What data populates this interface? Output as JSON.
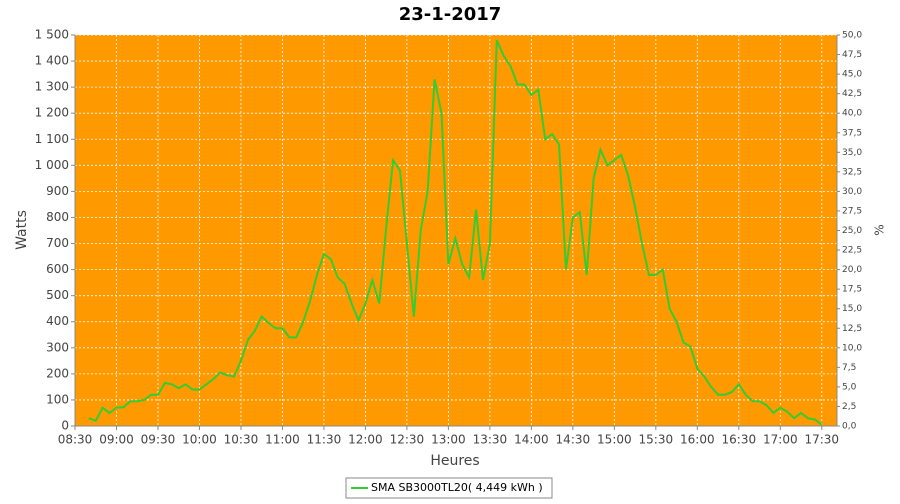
{
  "chart_data": {
    "type": "line",
    "title": "23-1-2017",
    "xlabel": "Heures",
    "ylabel": "Watts",
    "y2label": "%",
    "x": [
      "08:40",
      "08:45",
      "08:50",
      "08:55",
      "09:00",
      "09:05",
      "09:10",
      "09:15",
      "09:20",
      "09:25",
      "09:30",
      "09:35",
      "09:40",
      "09:45",
      "09:50",
      "09:55",
      "10:00",
      "10:05",
      "10:10",
      "10:15",
      "10:20",
      "10:25",
      "10:30",
      "10:35",
      "10:40",
      "10:45",
      "10:50",
      "10:55",
      "11:00",
      "11:05",
      "11:10",
      "11:15",
      "11:20",
      "11:25",
      "11:30",
      "11:35",
      "11:40",
      "11:45",
      "11:50",
      "11:55",
      "12:00",
      "12:05",
      "12:10",
      "12:15",
      "12:20",
      "12:25",
      "12:30",
      "12:35",
      "12:40",
      "12:45",
      "12:50",
      "12:55",
      "13:00",
      "13:05",
      "13:10",
      "13:15",
      "13:20",
      "13:25",
      "13:30",
      "13:35",
      "13:40",
      "13:45",
      "13:50",
      "13:55",
      "14:00",
      "14:05",
      "14:10",
      "14:15",
      "14:20",
      "14:25",
      "14:30",
      "14:35",
      "14:40",
      "14:45",
      "14:50",
      "14:55",
      "15:00",
      "15:05",
      "15:10",
      "15:15",
      "15:20",
      "15:25",
      "15:30",
      "15:35",
      "15:40",
      "15:45",
      "15:50",
      "15:55",
      "16:00",
      "16:05",
      "16:10",
      "16:15",
      "16:20",
      "16:25",
      "16:30",
      "16:35",
      "16:40",
      "16:45",
      "16:50",
      "16:55",
      "17:00",
      "17:05",
      "17:10",
      "17:15",
      "17:20",
      "17:25",
      "17:30"
    ],
    "series": [
      {
        "name": "SMA SB3000TL20( 4,449 kWh )",
        "color": "#33cc33",
        "values": [
          30,
          20,
          70,
          50,
          70,
          72,
          95,
          95,
          100,
          120,
          120,
          165,
          160,
          145,
          160,
          140,
          140,
          160,
          180,
          205,
          195,
          190,
          250,
          330,
          365,
          420,
          395,
          375,
          375,
          340,
          340,
          400,
          480,
          580,
          660,
          640,
          570,
          545,
          470,
          405,
          470,
          560,
          470,
          760,
          1020,
          980,
          700,
          420,
          750,
          900,
          1330,
          1200,
          620,
          720,
          620,
          570,
          830,
          560,
          700,
          1480,
          1420,
          1380,
          1310,
          1310,
          1270,
          1290,
          1100,
          1120,
          1080,
          600,
          800,
          820,
          580,
          950,
          1060,
          1000,
          1020,
          1040,
          960,
          840,
          700,
          580,
          580,
          600,
          450,
          400,
          320,
          305,
          220,
          190,
          150,
          120,
          120,
          130,
          160,
          120,
          95,
          95,
          80,
          50,
          70,
          55,
          30,
          50,
          30,
          25,
          5
        ]
      }
    ],
    "xlim": [
      "08:30",
      "17:41"
    ],
    "xticks": [
      "08:30",
      "09:00",
      "09:30",
      "10:00",
      "10:30",
      "11:00",
      "11:30",
      "12:00",
      "12:30",
      "13:00",
      "13:30",
      "14:00",
      "14:30",
      "15:00",
      "15:30",
      "16:00",
      "16:30",
      "17:00",
      "17:30"
    ],
    "ylim": [
      0,
      1500
    ],
    "yticks": [
      0,
      100,
      200,
      300,
      400,
      500,
      600,
      700,
      800,
      900,
      {
        "value": 1000,
        "label": "1 000"
      },
      {
        "value": 1100,
        "label": "1 100"
      },
      {
        "value": 1200,
        "label": "1 200"
      },
      {
        "value": 1300,
        "label": "1 300"
      },
      {
        "value": 1400,
        "label": "1 400"
      },
      {
        "value": 1500,
        "label": "1 500"
      }
    ],
    "y2lim": [
      0,
      50
    ],
    "y2ticks": [
      {
        "value": 0,
        "label": "0,0"
      },
      {
        "value": 2.5,
        "label": "2,5"
      },
      {
        "value": 5,
        "label": "5,0"
      },
      {
        "value": 7.5,
        "label": "7,5"
      },
      {
        "value": 10,
        "label": "10,0"
      },
      {
        "value": 12.5,
        "label": "12,5"
      },
      {
        "value": 15,
        "label": "15,0"
      },
      {
        "value": 17.5,
        "label": "17,5"
      },
      {
        "value": 20,
        "label": "20,0"
      },
      {
        "value": 22.5,
        "label": "22,5"
      },
      {
        "value": 25,
        "label": "25,0"
      },
      {
        "value": 27.5,
        "label": "27,5"
      },
      {
        "value": 30,
        "label": "30,0"
      },
      {
        "value": 32.5,
        "label": "32,5"
      },
      {
        "value": 35,
        "label": "35,0"
      },
      {
        "value": 37.5,
        "label": "37,5"
      },
      {
        "value": 40,
        "label": "40,0"
      },
      {
        "value": 42.5,
        "label": "42,5"
      },
      {
        "value": 45,
        "label": "45,0"
      },
      {
        "value": 47.5,
        "label": "47,5"
      },
      {
        "value": 50,
        "label": "50,0"
      }
    ],
    "background": "#ff9900",
    "grid": true
  }
}
